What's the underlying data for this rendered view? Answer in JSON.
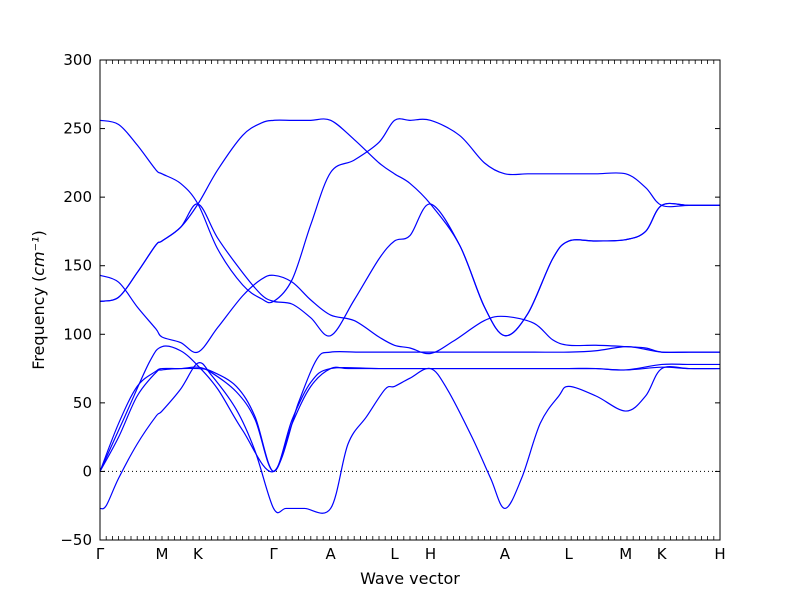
{
  "chart_data": {
    "type": "line",
    "title": "",
    "xlabel": "Wave vector",
    "ylabel": "Frequency",
    "ylabel_unit": "cm⁻¹",
    "ylim": [
      -50,
      300
    ],
    "yticks": [
      -50,
      0,
      50,
      100,
      150,
      200,
      250,
      300
    ],
    "xlim": [
      0,
      10
    ],
    "xticks": [
      {
        "label": "Γ",
        "pos": 0
      },
      {
        "label": "M",
        "pos": 1
      },
      {
        "label": "K",
        "pos": 1.58
      },
      {
        "label": "Γ",
        "pos": 2.8
      },
      {
        "label": "A",
        "pos": 3.72
      },
      {
        "label": "L",
        "pos": 4.75
      },
      {
        "label": "H",
        "pos": 5.33
      },
      {
        "label": "A",
        "pos": 6.53
      },
      {
        "label": "L",
        "pos": 7.56
      },
      {
        "label": "M",
        "pos": 8.48
      },
      {
        "label": "K",
        "pos": 9.06
      },
      {
        "label": "H",
        "pos": 10
      }
    ],
    "zero_line": {
      "y": 0,
      "style": "dotted"
    },
    "line_color": "#0000ff",
    "grid": false,
    "legend": "none",
    "series": [
      {
        "x": [
          0,
          0.1,
          0.3,
          0.6,
          0.9,
          1.0,
          1.3,
          1.58,
          1.8,
          2.2,
          2.5,
          2.8,
          3.0,
          3.3,
          3.72,
          4.0,
          4.3,
          4.6,
          4.75,
          5.0,
          5.33,
          5.6,
          6.0,
          6.3,
          6.53,
          6.8,
          7.1,
          7.4,
          7.56,
          8.0,
          8.48,
          8.8,
          9.06,
          9.5,
          10
        ],
        "y": [
          -27,
          -25,
          -5,
          20,
          40,
          44,
          60,
          79,
          70,
          45,
          15,
          -27,
          -27,
          -27,
          -27,
          20,
          40,
          60,
          62,
          68,
          75,
          60,
          25,
          -5,
          -27,
          -5,
          35,
          55,
          62,
          55,
          44,
          55,
          75,
          75,
          75
        ]
      },
      {
        "x": [
          0,
          0.3,
          0.6,
          0.9,
          1.0,
          1.3,
          1.58,
          1.8,
          2.2,
          2.5,
          2.8,
          3.1,
          3.4,
          3.72,
          4.0,
          4.5,
          5.0,
          5.5,
          6.0,
          6.53,
          7.0,
          7.56,
          8.0,
          8.48,
          9.06,
          9.5,
          10
        ],
        "y": [
          0,
          25,
          55,
          72,
          74,
          75,
          75,
          73,
          62,
          40,
          0,
          35,
          62,
          75,
          75,
          75,
          75,
          75,
          75,
          75,
          75,
          75,
          75,
          74,
          76,
          75,
          75
        ]
      },
      {
        "x": [
          0,
          0.3,
          0.6,
          0.9,
          1.0,
          1.3,
          1.58,
          1.8,
          2.2,
          2.5,
          2.8,
          3.1,
          3.4,
          3.72,
          4.5,
          5.5,
          6.53,
          7.0,
          7.56,
          8.0,
          8.48,
          9.06,
          9.5,
          10
        ],
        "y": [
          0,
          35,
          62,
          73,
          75,
          75,
          76,
          72,
          58,
          38,
          0,
          38,
          65,
          75,
          75,
          75,
          75,
          75,
          75,
          75,
          74,
          78,
          78,
          78
        ]
      },
      {
        "x": [
          0,
          0.4,
          0.8,
          1.0,
          1.3,
          1.58,
          1.9,
          2.3,
          2.8,
          3.2,
          3.5,
          3.72,
          4.2,
          4.75,
          5.33,
          6.0,
          6.53,
          7.0,
          7.56,
          8.0,
          8.48,
          8.8,
          9.06,
          9.5,
          10
        ],
        "y": [
          0,
          40,
          80,
          91,
          88,
          77,
          60,
          30,
          0,
          50,
          82,
          87,
          87,
          87,
          87,
          87,
          87,
          87,
          87,
          88,
          91,
          89,
          87,
          87,
          87
        ]
      },
      {
        "x": [
          0,
          0.3,
          0.6,
          0.9,
          1.0,
          1.3,
          1.58,
          1.9,
          2.3,
          2.6,
          2.8,
          3.1,
          3.4,
          3.72,
          4.1,
          4.5,
          4.75,
          5.0,
          5.33,
          5.7,
          6.2,
          6.53,
          7.0,
          7.3,
          7.56,
          8.0,
          8.48,
          8.8,
          9.06,
          9.5,
          10
        ],
        "y": [
          143,
          138,
          120,
          104,
          98,
          94,
          87,
          105,
          128,
          140,
          143,
          138,
          125,
          114,
          110,
          98,
          92,
          90,
          86,
          95,
          110,
          113,
          108,
          96,
          92,
          92,
          91,
          90,
          87,
          87,
          87
        ]
      },
      {
        "x": [
          0,
          0.3,
          0.6,
          0.9,
          1.0,
          1.3,
          1.58,
          1.9,
          2.3,
          2.6,
          2.8,
          3.1,
          3.4,
          3.72,
          4.1,
          4.5,
          4.75,
          5.0,
          5.33,
          5.8,
          6.2,
          6.53,
          6.9,
          7.3,
          7.56,
          8.0,
          8.48,
          8.8,
          9.06,
          9.5,
          10
        ],
        "y": [
          124,
          127,
          145,
          165,
          168,
          178,
          195,
          170,
          145,
          129,
          124,
          122,
          112,
          99,
          125,
          155,
          168,
          172,
          195,
          165,
          120,
          99,
          115,
          155,
          168,
          168,
          169,
          175,
          194,
          194,
          194
        ]
      },
      {
        "x": [
          0,
          0.3,
          0.6,
          0.9,
          1.0,
          1.3,
          1.58,
          1.9,
          2.3,
          2.6,
          2.8,
          3.1,
          3.4,
          3.72,
          4.1,
          4.5,
          4.75,
          5.0,
          5.33,
          5.8,
          6.2,
          6.53,
          6.9,
          7.3,
          7.56,
          8.0,
          8.48,
          8.8,
          9.06,
          9.5,
          10
        ],
        "y": [
          256,
          253,
          238,
          220,
          217,
          210,
          195,
          162,
          136,
          126,
          124,
          140,
          180,
          218,
          227,
          240,
          256,
          256,
          256,
          245,
          225,
          217,
          217,
          217,
          217,
          217,
          217,
          207,
          194,
          194,
          194
        ]
      },
      {
        "x": [
          0,
          0.3,
          0.6,
          0.9,
          1.0,
          1.3,
          1.58,
          1.9,
          2.3,
          2.6,
          2.8,
          3.1,
          3.4,
          3.72,
          4.1,
          4.5,
          4.75,
          5.0,
          5.33,
          5.8,
          6.2,
          6.53,
          6.9,
          7.3,
          7.56,
          8.0,
          8.48,
          8.8,
          9.06,
          9.5,
          10
        ],
        "y": [
          124,
          127,
          145,
          165,
          168,
          178,
          195,
          220,
          245,
          254,
          256,
          256,
          256,
          256,
          242,
          225,
          217,
          210,
          195,
          165,
          120,
          99,
          115,
          155,
          168,
          168,
          169,
          175,
          194,
          194,
          194
        ]
      }
    ]
  }
}
